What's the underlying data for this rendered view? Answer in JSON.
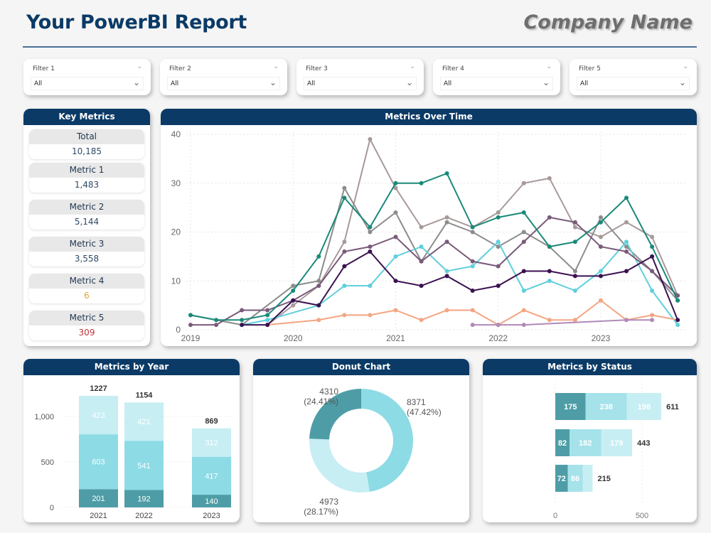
{
  "header": {
    "title": "Your PowerBI Report",
    "company": "Company Name"
  },
  "filters": [
    {
      "label": "Filter 1",
      "value": "All"
    },
    {
      "label": "Filter 2",
      "value": "All"
    },
    {
      "label": "Filter 3",
      "value": "All"
    },
    {
      "label": "Filter 4",
      "value": "All"
    },
    {
      "label": "Filter 5",
      "value": "All"
    }
  ],
  "key_metrics": {
    "title": "Key Metrics",
    "items": [
      {
        "label": "Total",
        "value": "10,185",
        "color": "#2e4a66"
      },
      {
        "label": "Metric 1",
        "value": "1,483",
        "color": "#2e4a66"
      },
      {
        "label": "Metric 2",
        "value": "5,144",
        "color": "#2e4a66"
      },
      {
        "label": "Metric 3",
        "value": "3,558",
        "color": "#2e4a66"
      },
      {
        "label": "Metric 4",
        "value": "6",
        "color": "#e0a53a"
      },
      {
        "label": "Metric 5",
        "value": "309",
        "color": "#c0353a"
      }
    ]
  },
  "panels": {
    "line": "Metrics Over Time",
    "year": "Metrics by Year",
    "donut": "Donut Chart",
    "status": "Metrics by Status"
  },
  "chart_data": [
    {
      "type": "line",
      "x": [
        "2019 Q1",
        "2019 Q2",
        "2019 Q3",
        "2019 Q4",
        "2020 Q1",
        "2020 Q2",
        "2020 Q3",
        "2020 Q4",
        "2021 Q1",
        "2021 Q2",
        "2021 Q3",
        "2021 Q4",
        "2022 Q1",
        "2022 Q2",
        "2022 Q3",
        "2022 Q4",
        "2023 Q1",
        "2023 Q2",
        "2023 Q3",
        "2023 Q4"
      ],
      "x_ticks": [
        "2019",
        "2020",
        "2021",
        "2022",
        "2023"
      ],
      "y_ticks": [
        0,
        10,
        20,
        30,
        40
      ],
      "ylim": [
        0,
        40
      ],
      "grid": true,
      "series": [
        {
          "color": "#a89999",
          "values": [
            null,
            null,
            null,
            1,
            5,
            9,
            18,
            39,
            29,
            21,
            23,
            21,
            24,
            30,
            31,
            21,
            19,
            22,
            19,
            7
          ]
        },
        {
          "color": "#8c8c8c",
          "values": [
            3,
            null,
            1,
            null,
            9,
            10,
            29,
            20,
            24,
            14,
            22,
            20,
            17,
            20,
            17,
            12,
            23,
            17,
            12,
            6
          ]
        },
        {
          "color": "#5fcfdc",
          "values": [
            null,
            null,
            1,
            2,
            null,
            5,
            9,
            9,
            15,
            17,
            12,
            13,
            18,
            8,
            10,
            8,
            12,
            18,
            8,
            1
          ]
        },
        {
          "color": "#f4a582",
          "values": [
            null,
            null,
            null,
            1,
            null,
            2,
            3,
            3,
            4,
            2,
            4,
            4,
            1,
            4,
            2,
            2,
            6,
            2,
            3,
            2
          ]
        },
        {
          "color": "#b08ab8",
          "values": [
            null,
            null,
            null,
            null,
            null,
            null,
            null,
            null,
            null,
            null,
            null,
            1,
            1,
            1,
            null,
            null,
            null,
            2,
            2,
            null
          ]
        },
        {
          "color": "#7a5a7a",
          "values": [
            1,
            1,
            4,
            4,
            6,
            9,
            16,
            17,
            19,
            14,
            18,
            14,
            13,
            18,
            23,
            22,
            17,
            16,
            12,
            7
          ]
        },
        {
          "color": "#3b1150",
          "values": [
            null,
            null,
            1,
            1,
            6,
            5,
            13,
            16,
            10,
            9,
            11,
            8,
            9,
            12,
            12,
            11,
            11,
            12,
            15,
            2
          ]
        },
        {
          "color": "#1a8a7a",
          "values": [
            3,
            2,
            2,
            3,
            8,
            15,
            27,
            21,
            30,
            30,
            32,
            21,
            23,
            24,
            17,
            18,
            22,
            27,
            17,
            6
          ]
        }
      ]
    },
    {
      "type": "bar",
      "stacked": true,
      "categories": [
        "2021",
        "2022",
        "2023"
      ],
      "series": [
        {
          "color": "#4e9da6",
          "values": [
            201,
            192,
            140
          ]
        },
        {
          "color": "#8ddbe5",
          "values": [
            603,
            541,
            417
          ]
        },
        {
          "color": "#c7eef3",
          "values": [
            423,
            421,
            312
          ]
        }
      ],
      "totals": [
        1227,
        1154,
        869
      ],
      "y_ticks": [
        "0",
        "500",
        "1,000"
      ],
      "ylim": [
        0,
        1300
      ]
    },
    {
      "type": "pie",
      "donut": true,
      "slices": [
        {
          "value": 8371,
          "pct": "(47.42%)",
          "color": "#8ddbe5"
        },
        {
          "value": 4973,
          "pct": "(28.17%)",
          "color": "#c7eef3"
        },
        {
          "value": 4310,
          "pct": "(24.41%)",
          "color": "#4e9da6"
        }
      ]
    },
    {
      "type": "bar",
      "orientation": "horizontal",
      "stacked": true,
      "series": [
        {
          "color": "#4e9da6",
          "values": [
            175,
            82,
            72
          ],
          "labels": [
            "175",
            "82",
            "72"
          ]
        },
        {
          "color": "#a5e2ea",
          "values": [
            238,
            182,
            86
          ],
          "labels": [
            "238",
            "182",
            "86"
          ]
        },
        {
          "color": "#c7eef3",
          "values": [
            198,
            179,
            57
          ],
          "labels": [
            "198",
            "179",
            ""
          ]
        }
      ],
      "totals": [
        611,
        443,
        215
      ],
      "x_ticks": [
        "0",
        "500"
      ],
      "xlim": [
        0,
        760
      ]
    }
  ]
}
